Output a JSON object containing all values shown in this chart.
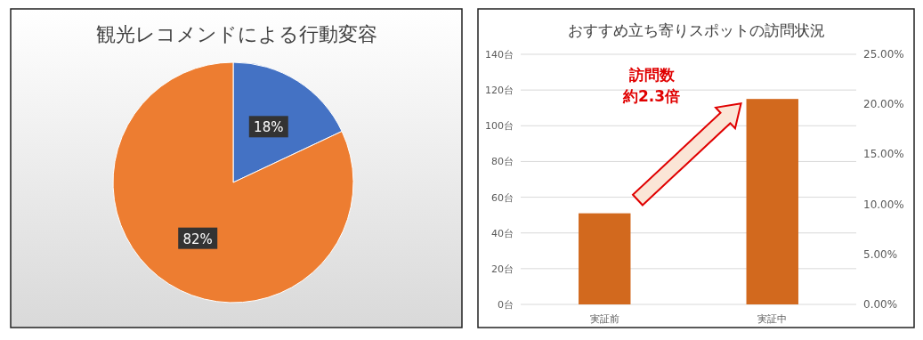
{
  "chart_data": [
    {
      "type": "pie",
      "title": "観光レコメンドによる行動変容",
      "categories": [
        null,
        null
      ],
      "values": [
        18,
        82
      ],
      "colors": [
        "#4472c4",
        "#ed7d31"
      ],
      "value_labels": [
        "18%",
        "82%"
      ]
    },
    {
      "type": "bar",
      "title": "おすすめ立ち寄りスポットの訪問状況",
      "categories": [
        "実証前",
        "実証中"
      ],
      "series": [
        {
          "color": "#d2691e",
          "values": [
            51,
            115
          ]
        }
      ],
      "ylim": [
        0,
        140
      ],
      "yticks": [
        {
          "value": 0,
          "label": "0台"
        },
        {
          "value": 20,
          "label": "20台"
        },
        {
          "value": 40,
          "label": "40台"
        },
        {
          "value": 60,
          "label": "60台"
        },
        {
          "value": 80,
          "label": "80台"
        },
        {
          "value": 100,
          "label": "100台"
        },
        {
          "value": 120,
          "label": "120台"
        },
        {
          "value": 140,
          "label": "140台"
        }
      ],
      "y2lim": [
        0,
        25
      ],
      "y2ticks": [
        {
          "value": 0,
          "label": "0.00%"
        },
        {
          "value": 5,
          "label": "5.00%"
        },
        {
          "value": 10,
          "label": "10.00%"
        },
        {
          "value": 15,
          "label": "15.00%"
        },
        {
          "value": 20,
          "label": "20.00%"
        },
        {
          "value": 25,
          "label": "25.00%"
        }
      ],
      "grid": "y",
      "annotations": [
        "訪問数",
        "約2.3倍"
      ]
    }
  ]
}
